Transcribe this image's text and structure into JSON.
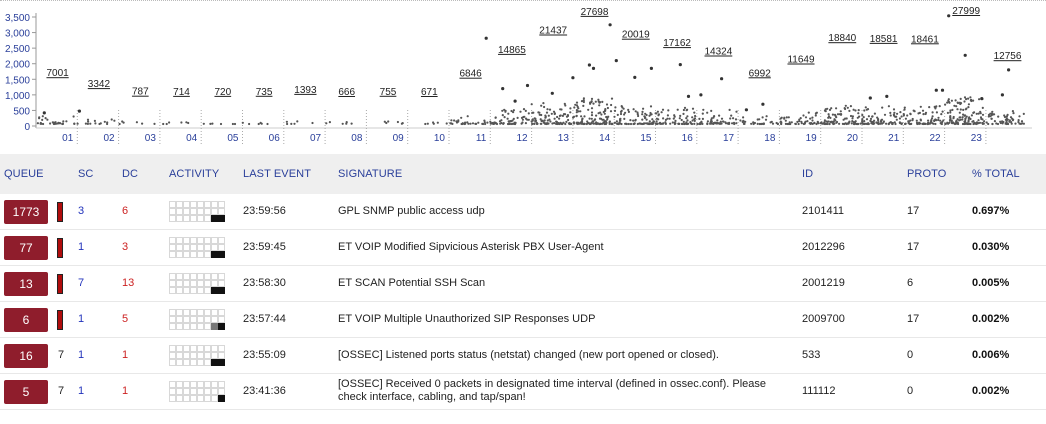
{
  "chart_data": {
    "type": "scatter",
    "title": "",
    "ylim": [
      0,
      3500
    ],
    "yticks": [
      "0",
      "500",
      "1,000",
      "1,500",
      "2,000",
      "2,500",
      "3,000",
      "3,500"
    ],
    "ytick_values": [
      0,
      500,
      1000,
      1500,
      2000,
      2500,
      3000,
      3500
    ],
    "hour_labels": [
      "01",
      "02",
      "03",
      "04",
      "05",
      "06",
      "07",
      "08",
      "09",
      "10",
      "11",
      "12",
      "13",
      "14",
      "15",
      "16",
      "17",
      "18",
      "19",
      "20",
      "21",
      "22",
      "23"
    ],
    "hour_totals": [
      "7001",
      "3342",
      "787",
      "714",
      "720",
      "735",
      "1393",
      "666",
      "755",
      "671",
      "6846",
      "14865",
      "21437",
      "27698",
      "20019",
      "17162",
      "14324",
      "6992",
      "11649",
      "18840",
      "18581",
      "18461",
      "27999",
      "12756"
    ],
    "total_values": [
      7001,
      3342,
      787,
      714,
      720,
      735,
      1393,
      666,
      755,
      671,
      6846,
      14865,
      21437,
      27698,
      20019,
      17162,
      14324,
      6992,
      11649,
      18840,
      18581,
      18461,
      27999,
      12756
    ],
    "highlight_points": [
      {
        "h": 0.2,
        "v": 420
      },
      {
        "h": 1.05,
        "v": 480
      },
      {
        "h": 10.9,
        "v": 2820
      },
      {
        "h": 11.3,
        "v": 1200
      },
      {
        "h": 11.6,
        "v": 800
      },
      {
        "h": 11.9,
        "v": 1300
      },
      {
        "h": 12.5,
        "v": 1050
      },
      {
        "h": 13.0,
        "v": 1550
      },
      {
        "h": 13.4,
        "v": 1960
      },
      {
        "h": 13.5,
        "v": 1850
      },
      {
        "h": 13.9,
        "v": 3250
      },
      {
        "h": 14.05,
        "v": 2100
      },
      {
        "h": 14.5,
        "v": 1560
      },
      {
        "h": 14.9,
        "v": 1850
      },
      {
        "h": 15.6,
        "v": 1970
      },
      {
        "h": 15.8,
        "v": 950
      },
      {
        "h": 16.1,
        "v": 1000
      },
      {
        "h": 16.6,
        "v": 1520
      },
      {
        "h": 17.2,
        "v": 520
      },
      {
        "h": 17.6,
        "v": 700
      },
      {
        "h": 20.2,
        "v": 900
      },
      {
        "h": 20.6,
        "v": 950
      },
      {
        "h": 21.8,
        "v": 1150
      },
      {
        "h": 21.95,
        "v": 1150
      },
      {
        "h": 22.1,
        "v": 3540
      },
      {
        "h": 22.5,
        "v": 2270
      },
      {
        "h": 22.9,
        "v": 880
      },
      {
        "h": 23.4,
        "v": 1000
      },
      {
        "h": 23.55,
        "v": 1800
      }
    ]
  },
  "colors": {
    "queue_badge": "#8f1d2c",
    "severity_bar": "#b00c0c",
    "sc_text": "#2233bb",
    "dc_text": "#cc2222",
    "header_text": "#2a3f9a",
    "header_bg": "#efefef",
    "chart_axis_text": "#2a3f9a"
  },
  "table": {
    "headers": {
      "queue": "QUEUE",
      "sc": "SC",
      "dc": "DC",
      "activity": "ACTIVITY",
      "last_event": "LAST EVENT",
      "signature": "SIGNATURE",
      "id": "ID",
      "proto": "PROTO",
      "total": "% TOTAL"
    },
    "rows": [
      {
        "queue": "1773",
        "severity": "",
        "sc": "3",
        "dc": "6",
        "activity": [
          0,
          0,
          0,
          0,
          0,
          0,
          0,
          0,
          0,
          0,
          0,
          0,
          0,
          0,
          0,
          0,
          0,
          0,
          0,
          0,
          0,
          0,
          1,
          1
        ],
        "last_event": "23:59:56",
        "signature": "GPL SNMP public access udp",
        "id": "2101411",
        "proto": "17",
        "total": "0.697%"
      },
      {
        "queue": "77",
        "severity": "",
        "sc": "1",
        "dc": "3",
        "activity": [
          0,
          0,
          0,
          0,
          0,
          0,
          0,
          0,
          0,
          0,
          0,
          0,
          0,
          0,
          0,
          0,
          0,
          0,
          0,
          0,
          0,
          0,
          1,
          1
        ],
        "last_event": "23:59:45",
        "signature": "ET VOIP Modified Sipvicious Asterisk PBX User-Agent",
        "id": "2012296",
        "proto": "17",
        "total": "0.030%"
      },
      {
        "queue": "13",
        "severity": "",
        "sc": "7",
        "dc": "13",
        "activity": [
          0,
          0,
          0,
          0,
          0,
          0,
          0,
          0,
          0,
          0,
          0,
          0,
          0,
          0,
          0,
          0,
          0,
          0,
          0,
          0,
          0,
          0,
          1,
          1
        ],
        "last_event": "23:58:30",
        "signature": "ET SCAN Potential SSH Scan",
        "id": "2001219",
        "proto": "6",
        "total": "0.005%"
      },
      {
        "queue": "6",
        "severity": "",
        "sc": "1",
        "dc": "5",
        "activity": [
          0,
          0,
          0,
          0,
          0,
          0,
          0,
          0,
          0,
          0,
          0,
          0,
          0,
          0,
          0,
          0,
          0,
          0,
          0,
          0,
          0,
          0,
          2,
          1
        ],
        "last_event": "23:57:44",
        "signature": "ET VOIP Multiple Unauthorized SIP Responses UDP",
        "id": "2009700",
        "proto": "17",
        "total": "0.002%"
      },
      {
        "queue": "16",
        "severity": "7",
        "sc": "1",
        "dc": "1",
        "activity": [
          0,
          0,
          0,
          0,
          0,
          0,
          0,
          0,
          0,
          0,
          0,
          0,
          0,
          0,
          0,
          0,
          0,
          0,
          0,
          0,
          0,
          0,
          1,
          1
        ],
        "last_event": "23:55:09",
        "signature": "[OSSEC] Listened ports status (netstat) changed (new port opened or closed).",
        "id": "533",
        "proto": "0",
        "total": "0.006%"
      },
      {
        "queue": "5",
        "severity": "7",
        "sc": "1",
        "dc": "1",
        "activity": [
          0,
          0,
          0,
          0,
          0,
          0,
          0,
          0,
          0,
          0,
          0,
          0,
          0,
          0,
          0,
          0,
          0,
          0,
          0,
          0,
          0,
          0,
          0,
          1
        ],
        "last_event": "23:41:36",
        "signature": "[OSSEC] Received 0 packets in designated time interval (defined in ossec.conf). Please check interface, cabling, and tap/span!",
        "id": "111112",
        "proto": "0",
        "total": "0.002%"
      }
    ]
  }
}
